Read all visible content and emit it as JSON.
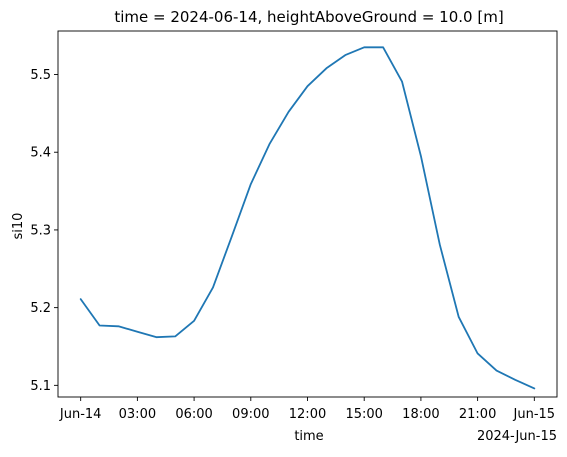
{
  "chart_data": {
    "type": "line",
    "title": "time = 2024-06-14, heightAboveGround = 10.0 [m]",
    "xlabel": "time",
    "ylabel": "si10",
    "x_unit": "hours from 2024-06-14 00:00",
    "x_range": [
      -1.2,
      25.2
    ],
    "ylim": [
      5.085,
      5.556
    ],
    "grid": false,
    "legend": "none",
    "line_color": "#1f77b4",
    "x_ticks": [
      {
        "value": 0,
        "label": "Jun-14"
      },
      {
        "value": 3,
        "label": "03:00"
      },
      {
        "value": 6,
        "label": "06:00"
      },
      {
        "value": 9,
        "label": "09:00"
      },
      {
        "value": 12,
        "label": "12:00"
      },
      {
        "value": 15,
        "label": "15:00"
      },
      {
        "value": 18,
        "label": "18:00"
      },
      {
        "value": 21,
        "label": "21:00"
      },
      {
        "value": 24,
        "label": "Jun-15"
      }
    ],
    "x_offset_label": "2024-Jun-15",
    "y_ticks": [
      {
        "value": 5.1,
        "label": "5.1"
      },
      {
        "value": 5.2,
        "label": "5.2"
      },
      {
        "value": 5.3,
        "label": "5.3"
      },
      {
        "value": 5.4,
        "label": "5.4"
      },
      {
        "value": 5.5,
        "label": "5.5"
      }
    ],
    "series": [
      {
        "name": "si10",
        "x": [
          0,
          1,
          2,
          3,
          4,
          5,
          6,
          7,
          8,
          9,
          10,
          11,
          12,
          13,
          14,
          15,
          16,
          17,
          18,
          19,
          20,
          21,
          22,
          23,
          24
        ],
        "y": [
          5.211,
          5.177,
          5.176,
          5.169,
          5.162,
          5.163,
          5.183,
          5.226,
          5.292,
          5.359,
          5.411,
          5.452,
          5.485,
          5.508,
          5.525,
          5.535,
          5.535,
          5.491,
          5.395,
          5.281,
          5.188,
          5.141,
          5.119,
          5.107,
          5.096
        ]
      }
    ]
  }
}
